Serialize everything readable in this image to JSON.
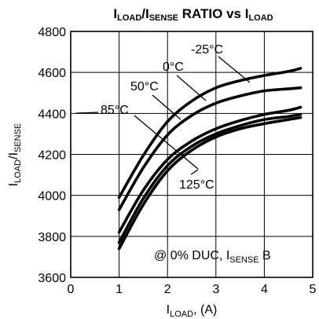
{
  "chart_data": {
    "type": "line",
    "title": {
      "main": "I",
      "sub1": "LOAD",
      "mid": "/I",
      "sub2": "SENSE",
      "tail": " RATIO vs I",
      "sub3": "LOAD"
    },
    "xlabel": {
      "main": "I",
      "sub": "LOAD",
      "tail": ", (A)"
    },
    "ylabel": {
      "main": "I",
      "sub1": "LOAD",
      "mid": "/I",
      "sub2": "SENSE"
    },
    "xlim": [
      0,
      5
    ],
    "ylim": [
      3600,
      4800
    ],
    "xticks": [
      "0",
      "1",
      "2",
      "3",
      "4",
      "5"
    ],
    "yticks": [
      "3600",
      "3800",
      "4000",
      "4200",
      "4400",
      "4600",
      "4800"
    ],
    "grid": true,
    "annotation": {
      "main": "@ 0% DUC, I",
      "sub": "SENSE",
      "tail": " B"
    },
    "series": [
      {
        "name": "-25°C",
        "x": [
          1.0,
          1.5,
          2.0,
          2.5,
          3.0,
          3.5,
          4.0,
          4.5,
          4.75
        ],
        "values": [
          3990,
          4195,
          4360,
          4460,
          4525,
          4560,
          4585,
          4605,
          4620
        ]
      },
      {
        "name": "0°C",
        "x": [
          1.0,
          1.5,
          2.0,
          2.5,
          3.0,
          3.5,
          4.0,
          4.5,
          4.75
        ],
        "values": [
          3930,
          4135,
          4295,
          4390,
          4450,
          4485,
          4510,
          4520,
          4525
        ]
      },
      {
        "name": "50°C",
        "x": [
          1.0,
          1.5,
          2.0,
          2.5,
          3.0,
          3.5,
          4.0,
          4.5,
          4.75
        ],
        "values": [
          3820,
          4025,
          4175,
          4265,
          4325,
          4365,
          4395,
          4415,
          4430
        ]
      },
      {
        "name": "85°C",
        "x": [
          1.0,
          1.5,
          2.0,
          2.5,
          3.0,
          3.5,
          4.0,
          4.5,
          4.75
        ],
        "values": [
          3770,
          3985,
          4145,
          4240,
          4300,
          4340,
          4370,
          4385,
          4395
        ]
      },
      {
        "name": "125°C",
        "x": [
          1.0,
          1.5,
          2.0,
          2.5,
          3.0,
          3.5,
          4.0,
          4.5,
          4.75
        ],
        "values": [
          3740,
          3955,
          4120,
          4220,
          4285,
          4325,
          4350,
          4370,
          4380
        ]
      }
    ]
  }
}
